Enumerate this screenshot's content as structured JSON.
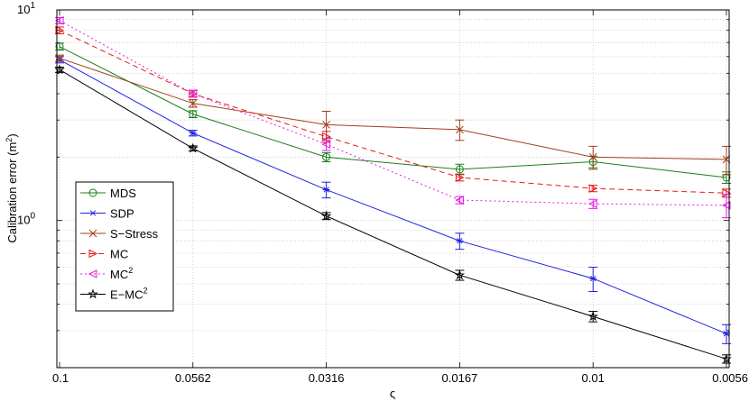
{
  "chart_data": {
    "type": "line",
    "x": [
      "0.1",
      "0.0562",
      "0.0316",
      "0.0167",
      "0.01",
      "0.0056"
    ],
    "xlabel": "ς",
    "ylabel": "Calibration error (m",
    "ylabel_sup": "2",
    "ylabel_close": ")",
    "yscale": "log",
    "ylim": [
      0.2,
      10
    ],
    "y_tick_labels": [
      {
        "value": 1,
        "base": "10",
        "exp": "0"
      },
      {
        "value": 10,
        "base": "10",
        "exp": "1"
      }
    ],
    "grid": true,
    "legend_position": "bottom-left",
    "series": [
      {
        "name": "MDS",
        "label_base": "MDS",
        "label_sup": "",
        "color": "#1a7f1a",
        "marker": "circle",
        "dash": "",
        "values": [
          6.7,
          3.2,
          2.0,
          1.75,
          1.9,
          1.6
        ],
        "err": [
          0.25,
          0.12,
          0.1,
          0.1,
          0.12,
          0.1
        ]
      },
      {
        "name": "SDP",
        "label_base": "SDP",
        "label_sup": "",
        "color": "#1f1fe6",
        "marker": "star",
        "dash": "",
        "values": [
          5.8,
          2.6,
          1.4,
          0.8,
          0.53,
          0.29
        ],
        "err": [
          0.2,
          0.08,
          0.12,
          0.07,
          0.07,
          0.03
        ]
      },
      {
        "name": "S-Stress",
        "label_base": "S−Stress",
        "label_sup": "",
        "color": "#a0401a",
        "marker": "x",
        "dash": "",
        "values": [
          5.9,
          3.6,
          2.85,
          2.7,
          2.0,
          1.95
        ],
        "err": [
          0.2,
          0.15,
          0.45,
          0.3,
          0.25,
          0.3
        ]
      },
      {
        "name": "MC",
        "label_base": "MC",
        "label_sup": "",
        "color": "#e61a1a",
        "marker": "tri-right",
        "dash": "6,4",
        "values": [
          8.0,
          4.0,
          2.5,
          1.6,
          1.42,
          1.35
        ],
        "err": [
          0.3,
          0.15,
          0.15,
          0.06,
          0.05,
          0.06
        ]
      },
      {
        "name": "MC2",
        "label_base": "MC",
        "label_sup": "2",
        "color": "#e619e6",
        "marker": "tri-left",
        "dash": "2,3",
        "values": [
          8.9,
          4.0,
          2.3,
          1.25,
          1.2,
          1.18
        ],
        "err": [
          0.3,
          0.15,
          0.15,
          0.05,
          0.06,
          0.15
        ]
      },
      {
        "name": "E-MC2",
        "label_base": "E−MC",
        "label_sup": "2",
        "color": "#000000",
        "marker": "pentagram",
        "dash": "",
        "values": [
          5.2,
          2.2,
          1.05,
          0.55,
          0.35,
          0.22
        ],
        "err": [
          0.15,
          0.06,
          0.04,
          0.03,
          0.02,
          0.01
        ]
      }
    ]
  }
}
